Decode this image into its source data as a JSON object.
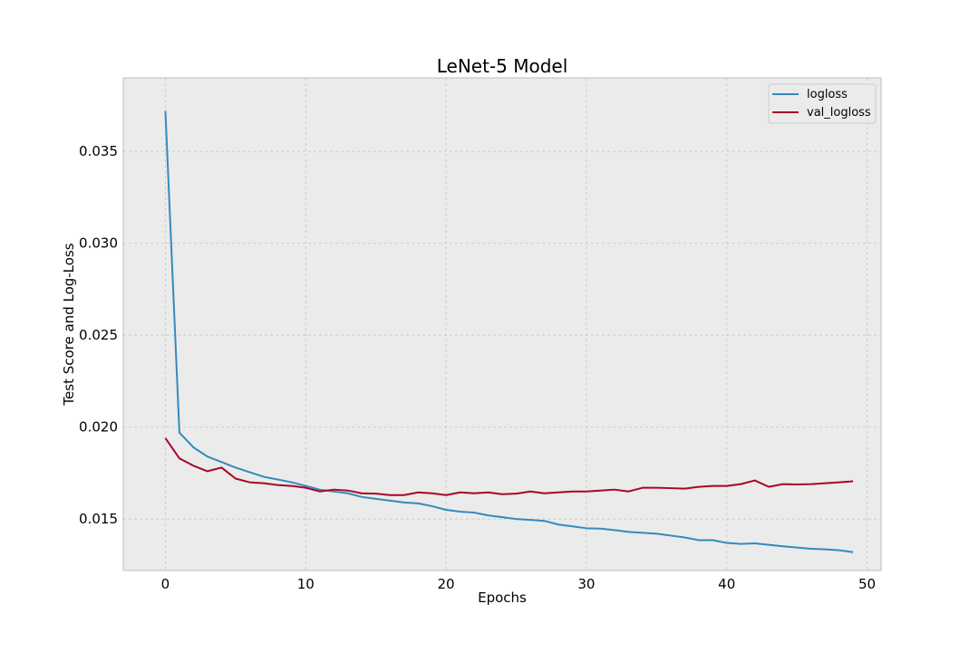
{
  "chart_data": {
    "type": "line",
    "title": "LeNet-5 Model",
    "xlabel": "Epochs",
    "ylabel": "Test Score and Log-Loss",
    "xlim": [
      -3,
      51
    ],
    "ylim": [
      0.0122,
      0.039
    ],
    "xticks": [
      0,
      10,
      20,
      30,
      40,
      50
    ],
    "yticks": [
      0.015,
      0.02,
      0.025,
      0.03,
      0.035
    ],
    "xtick_labels": [
      "0",
      "10",
      "20",
      "30",
      "40",
      "50"
    ],
    "ytick_labels": [
      "0.015",
      "0.020",
      "0.025",
      "0.030",
      "0.035"
    ],
    "grid": true,
    "legend_position": "top-right",
    "background": "#ebebeb",
    "x": [
      0,
      1,
      2,
      3,
      4,
      5,
      6,
      7,
      8,
      9,
      10,
      11,
      12,
      13,
      14,
      15,
      16,
      17,
      18,
      19,
      20,
      21,
      22,
      23,
      24,
      25,
      26,
      27,
      28,
      29,
      30,
      31,
      32,
      33,
      34,
      35,
      36,
      37,
      38,
      39,
      40,
      41,
      42,
      43,
      44,
      45,
      46,
      47,
      48,
      49
    ],
    "series": [
      {
        "name": "logloss",
        "color": "#348abd",
        "values": [
          0.0372,
          0.0197,
          0.0189,
          0.0184,
          0.0181,
          0.0178,
          0.01755,
          0.0173,
          0.01715,
          0.017,
          0.0168,
          0.0166,
          0.0165,
          0.0164,
          0.0162,
          0.0161,
          0.016,
          0.0159,
          0.01585,
          0.0157,
          0.0155,
          0.0154,
          0.01535,
          0.0152,
          0.0151,
          0.015,
          0.01495,
          0.0149,
          0.0147,
          0.0146,
          0.0145,
          0.01448,
          0.0144,
          0.0143,
          0.01425,
          0.0142,
          0.0141,
          0.014,
          0.01385,
          0.01385,
          0.0137,
          0.01365,
          0.01368,
          0.0136,
          0.01352,
          0.01345,
          0.01338,
          0.01335,
          0.0133,
          0.0132
        ]
      },
      {
        "name": "val_logloss",
        "color": "#a60628",
        "values": [
          0.0194,
          0.0183,
          0.0179,
          0.0176,
          0.0178,
          0.0172,
          0.017,
          0.01695,
          0.01685,
          0.0168,
          0.0167,
          0.0165,
          0.0166,
          0.01655,
          0.0164,
          0.01638,
          0.0163,
          0.0163,
          0.01645,
          0.0164,
          0.0163,
          0.01645,
          0.0164,
          0.01645,
          0.01635,
          0.01638,
          0.0165,
          0.0164,
          0.01645,
          0.0165,
          0.0165,
          0.01655,
          0.0166,
          0.0165,
          0.0167,
          0.0167,
          0.01668,
          0.01665,
          0.01675,
          0.0168,
          0.0168,
          0.0169,
          0.0171,
          0.01675,
          0.0169,
          0.01688,
          0.0169,
          0.01695,
          0.017,
          0.01705
        ]
      }
    ]
  }
}
